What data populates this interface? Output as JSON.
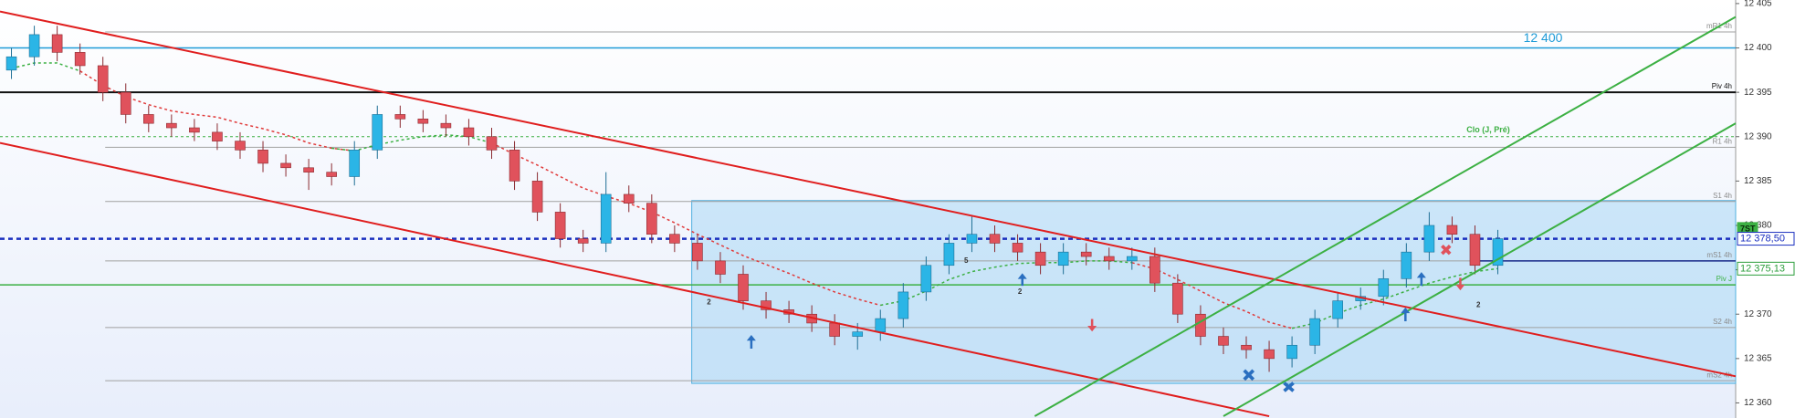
{
  "chart_data": {
    "type": "candlestick",
    "xlim": [
      -0.5,
      75.4
    ],
    "ylim": [
      12358.3,
      12405.4
    ],
    "yticks": [
      {
        "value": 12360,
        "label": "12 360"
      },
      {
        "value": 12365,
        "label": "12 365"
      },
      {
        "value": 12370,
        "label": "12 370"
      },
      {
        "value": 12375,
        "label": "12 375"
      },
      {
        "value": 12380,
        "label": "12 380"
      },
      {
        "value": 12385,
        "label": "12 385"
      },
      {
        "value": 12390,
        "label": "12 390"
      },
      {
        "value": 12395,
        "label": "12 395"
      },
      {
        "value": 12400,
        "label": "12 400"
      },
      {
        "value": 12405,
        "label": "12 405"
      }
    ],
    "up_color": "#2bb5e6",
    "down_color": "#e0525c",
    "open": [
      12397.5,
      12399.0,
      12401.5,
      12399.5,
      12398.0,
      12395.0,
      12392.5,
      12391.5,
      12391.0,
      12390.5,
      12389.5,
      12388.5,
      12387.0,
      12386.5,
      12386.0,
      12385.5,
      12388.5,
      12392.5,
      12392.0,
      12391.5,
      12391.0,
      12390.0,
      12388.5,
      12385.0,
      12381.5,
      12378.5,
      12378.0,
      12383.5,
      12382.5,
      12379.0,
      12378.0,
      12376.0,
      12374.5,
      12371.5,
      12370.5,
      12370.0,
      12369.0,
      12367.5,
      12368.0,
      12369.5,
      12372.5,
      12375.5,
      12378.0,
      12379.0,
      12378.0,
      12377.0,
      12375.5,
      12377.0,
      12376.5,
      12376.0,
      12376.5,
      12373.5,
      12370.0,
      12367.5,
      12366.5,
      12366.0,
      12365.0,
      12366.5,
      12369.5,
      12371.5,
      12372.0,
      12374.0,
      12377.0,
      12380.0,
      12379.0,
      12375.5
    ],
    "high": [
      12400.0,
      12402.5,
      12402.5,
      12400.5,
      12399.0,
      12396.0,
      12393.5,
      12392.5,
      12392.0,
      12391.5,
      12390.5,
      12389.5,
      12388.0,
      12387.5,
      12387.0,
      12389.5,
      12393.5,
      12393.5,
      12393.0,
      12392.5,
      12392.0,
      12391.0,
      12389.5,
      12386.0,
      12382.5,
      12379.5,
      12386.0,
      12384.5,
      12383.5,
      12380.0,
      12379.0,
      12377.0,
      12375.5,
      12372.5,
      12371.5,
      12371.0,
      12370.0,
      12369.0,
      12370.5,
      12373.5,
      12376.5,
      12379.0,
      12381.0,
      12380.0,
      12379.0,
      12378.0,
      12378.0,
      12378.0,
      12377.5,
      12377.5,
      12377.5,
      12374.5,
      12371.0,
      12368.5,
      12367.5,
      12367.0,
      12367.5,
      12370.5,
      12372.5,
      12373.0,
      12375.0,
      12378.0,
      12381.5,
      12381.0,
      12380.0,
      12379.5
    ],
    "low": [
      12396.5,
      12398.0,
      12398.5,
      12397.0,
      12394.0,
      12391.5,
      12390.5,
      12390.0,
      12389.5,
      12388.5,
      12387.5,
      12386.0,
      12385.5,
      12384.0,
      12384.5,
      12384.5,
      12387.5,
      12391.0,
      12390.5,
      12390.0,
      12389.0,
      12387.5,
      12384.0,
      12380.5,
      12377.5,
      12377.0,
      12377.0,
      12381.5,
      12378.0,
      12377.0,
      12375.0,
      12373.5,
      12370.5,
      12369.5,
      12369.0,
      12368.0,
      12366.5,
      12366.0,
      12367.0,
      12368.5,
      12371.5,
      12374.5,
      12377.0,
      12377.0,
      12376.0,
      12374.5,
      12374.5,
      12375.5,
      12375.0,
      12375.0,
      12372.5,
      12369.0,
      12366.5,
      12365.5,
      12365.0,
      12363.5,
      12364.0,
      12365.5,
      12368.5,
      12370.5,
      12371.0,
      12373.0,
      12376.0,
      12378.0,
      12374.5,
      12374.5
    ],
    "close": [
      12399.0,
      12401.5,
      12399.5,
      12398.0,
      12395.0,
      12392.5,
      12391.5,
      12391.0,
      12390.5,
      12389.5,
      12388.5,
      12387.0,
      12386.5,
      12386.0,
      12385.5,
      12388.5,
      12392.5,
      12392.0,
      12391.5,
      12391.0,
      12390.0,
      12388.5,
      12385.0,
      12381.5,
      12378.5,
      12378.0,
      12383.5,
      12382.5,
      12379.0,
      12378.0,
      12376.0,
      12374.5,
      12371.5,
      12370.5,
      12370.0,
      12369.0,
      12367.5,
      12368.0,
      12369.5,
      12372.5,
      12375.5,
      12378.0,
      12379.0,
      12378.0,
      12377.0,
      12375.5,
      12377.0,
      12376.5,
      12376.0,
      12376.5,
      12373.5,
      12370.0,
      12367.5,
      12366.5,
      12366.0,
      12365.0,
      12366.5,
      12369.5,
      12371.5,
      12372.0,
      12374.0,
      12377.0,
      12380.0,
      12379.0,
      12375.5,
      12378.5
    ],
    "series": [
      {
        "color": "#e03a3a",
        "values": [
          null,
          null,
          null,
          12397.4,
          12395.8,
          12394.5,
          12393.6,
          12392.9,
          12392.5,
          12392.2,
          12391.5,
          12390.9,
          12390.2,
          12389.3,
          12388.7,
          12388.4,
          null,
          null,
          null,
          null,
          null,
          12389.3,
          12388.0,
          12386.8,
          12385.5,
          12384.2,
          12383.3,
          12382.5,
          12381.5,
          12380.3,
          12379.0,
          12377.8,
          12376.6,
          12375.6,
          12374.6,
          12373.5,
          12372.5,
          12371.7,
          12371.0,
          null,
          null,
          null,
          null,
          null,
          null,
          null,
          null,
          null,
          null,
          12375.8,
          12375.1,
          12373.9,
          12372.6,
          12371.3,
          12370.3,
          12369.1,
          12368.4,
          null,
          null,
          null,
          null,
          null,
          null,
          null,
          null,
          null
        ]
      },
      {
        "color": "#3cb043",
        "values": [
          12397.7,
          12398.3,
          12398.3,
          12397.4,
          null,
          null,
          null,
          null,
          null,
          null,
          null,
          null,
          null,
          null,
          12388.7,
          12388.4,
          12389.1,
          12389.6,
          12390.0,
          12390.2,
          12390.0,
          12389.3,
          null,
          null,
          null,
          null,
          null,
          null,
          null,
          null,
          null,
          null,
          null,
          null,
          null,
          null,
          null,
          null,
          12371.0,
          12371.5,
          12372.6,
          12373.9,
          12374.8,
          12375.3,
          12375.7,
          12375.8,
          12375.8,
          12376.0,
          12376.0,
          12375.8,
          null,
          null,
          null,
          null,
          null,
          null,
          12368.4,
          12369.0,
          12370.1,
          12371.0,
          12371.7,
          12372.6,
          12373.5,
          12374.2,
          12374.8,
          12375.13
        ]
      }
    ],
    "zone": {
      "x": [
        29.75,
        75.4
      ],
      "y": [
        12362.2,
        12382.8
      ],
      "color": "#8fcdf2"
    },
    "levels": [
      {
        "label": "mR1 4h",
        "value": 12401.8,
        "color": "#a0a0a0",
        "from": 4.1
      },
      {
        "label": "12 400",
        "value": 12400,
        "color": "#1e9bd7",
        "width": 1.5,
        "large": true
      },
      {
        "label": "Piv 4h",
        "value": 12395,
        "color": "#111111",
        "width": 2
      },
      {
        "label": "Clo (J, Pré)",
        "value": 12390,
        "color": "#3cb043",
        "dash": true
      },
      {
        "label": "R1 4h",
        "value": 12388.8,
        "color": "#a0a0a0",
        "from": 4.1
      },
      {
        "label": "S1 4h",
        "value": 12382.7,
        "color": "#a0a0a0",
        "from": 4.1
      },
      {
        "value": 12378.5,
        "color": "#1a2fbf",
        "width": 2.5,
        "dash": true
      },
      {
        "label": "mS1 4h",
        "value": 12376,
        "color": "#a0a0a0",
        "from": 4.1
      },
      {
        "value": 12376,
        "color": "#1a2a8a",
        "width": 1.5,
        "from": 64
      },
      {
        "label": "Piv J",
        "value": 12373.3,
        "color": "#3cb043",
        "width": 1.5
      },
      {
        "label": "S2 4h",
        "value": 12368.5,
        "color": "#a0a0a0",
        "from": 4.1
      },
      {
        "label": "mS2 4h",
        "value": 12362.5,
        "color": "#a0a0a0",
        "from": 4.1
      }
    ],
    "trendlines": [
      {
        "color": "#e01e1e",
        "points": [
          [
            -0.5,
            12404.1
          ],
          [
            75.4,
            12363.0
          ]
        ]
      },
      {
        "color": "#e01e1e",
        "points": [
          [
            -0.5,
            12389.3
          ],
          [
            55,
            12358.5
          ]
        ]
      },
      {
        "color": "#3cb043",
        "points": [
          [
            44.75,
            12358.5
          ],
          [
            75.4,
            12403.5
          ]
        ]
      },
      {
        "color": "#3cb043",
        "points": [
          [
            53,
            12358.5
          ],
          [
            75.4,
            12391.5
          ]
        ]
      }
    ],
    "annotations": [
      {
        "x": 30.5,
        "y": 12371.3,
        "text": "2"
      },
      {
        "x": 41.75,
        "y": 12376.0,
        "text": "5"
      },
      {
        "x": 44.1,
        "y": 12372.5,
        "text": "2"
      },
      {
        "x": 64.15,
        "y": 12371.0,
        "text": "2"
      }
    ],
    "price_tags": [
      {
        "value": 12379.6,
        "label": "7ST",
        "color": "#3cb043",
        "filled": true
      },
      {
        "value": 12378.5,
        "label": "12 378,50",
        "color": "#1a2fbf"
      },
      {
        "value": 12375.13,
        "label": "12 375,13",
        "color": "#2a9d3a"
      }
    ]
  }
}
